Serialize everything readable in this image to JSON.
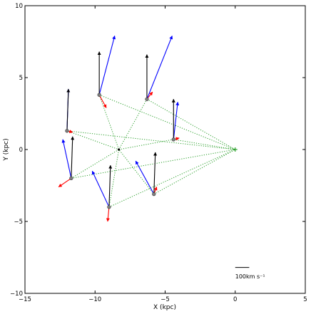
{
  "chart_data": {
    "type": "scatter",
    "title": "",
    "xlabel": "X (kpc)",
    "ylabel": "Y (kpc)",
    "xlim": [
      -15,
      5
    ],
    "ylim": [
      -10,
      10
    ],
    "xticks": [
      -15,
      -10,
      -5,
      0,
      5
    ],
    "yticks": [
      -10,
      -5,
      0,
      5,
      10
    ],
    "xtick_labels": [
      "−15",
      "−10",
      "−5",
      "0",
      "5"
    ],
    "ytick_labels": [
      "−10",
      "−5",
      "0",
      "5",
      "10"
    ],
    "grid": false,
    "colors": {
      "black_arrow": "#000000",
      "blue_arrow": "#0000ff",
      "red_arrow": "#ff0000",
      "dotted_line": "#2ca02c",
      "source_marker": "#808080",
      "sun_marker": "#2ca02c",
      "center_marker": "#000000"
    },
    "center": {
      "x": -8.3,
      "y": 0.0
    },
    "sun": {
      "x": 0.0,
      "y": 0.0
    },
    "sources": [
      {
        "x": -9.7,
        "y": 3.8,
        "black": [
          0.0,
          3.0
        ],
        "blue": [
          1.1,
          4.1
        ],
        "red": [
          0.5,
          -0.9
        ]
      },
      {
        "x": -6.3,
        "y": 3.5,
        "black": [
          0.0,
          3.1
        ],
        "blue": [
          1.8,
          4.4
        ],
        "red": [
          0.4,
          0.5
        ]
      },
      {
        "x": -12.0,
        "y": 1.3,
        "black": [
          0.1,
          2.9
        ],
        "blue": [
          0.1,
          2.9
        ],
        "red": [
          0.4,
          -0.1
        ]
      },
      {
        "x": -4.4,
        "y": 0.7,
        "black": [
          0.0,
          2.8
        ],
        "blue": [
          0.3,
          2.6
        ],
        "red": [
          0.4,
          0.1
        ]
      },
      {
        "x": -11.7,
        "y": -2.0,
        "black": [
          0.1,
          2.9
        ],
        "blue": [
          -0.6,
          2.7
        ],
        "red": [
          -0.9,
          -0.6
        ]
      },
      {
        "x": -5.8,
        "y": -3.1,
        "black": [
          0.1,
          2.9
        ],
        "blue": [
          -1.3,
          2.3
        ],
        "red": [
          0.2,
          0.5
        ]
      },
      {
        "x": -9.0,
        "y": -4.0,
        "black": [
          0.1,
          2.9
        ],
        "blue": [
          -1.2,
          2.5
        ],
        "red": [
          -0.1,
          -1.0
        ]
      }
    ],
    "scale_bar": {
      "label": "100km s⁻¹",
      "length": 1.0
    }
  }
}
